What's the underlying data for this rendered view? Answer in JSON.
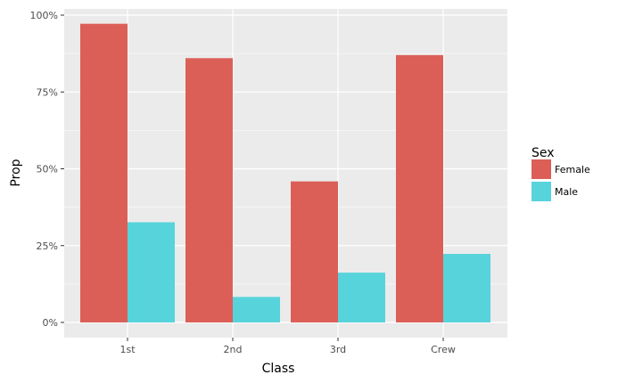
{
  "chart_data": {
    "type": "bar",
    "title": "",
    "xlabel": "Class",
    "ylabel": "Prop",
    "categories": [
      "1st",
      "2nd",
      "3rd",
      "Crew"
    ],
    "series": [
      {
        "name": "Female",
        "color": "#db5f57",
        "values": [
          0.972,
          0.86,
          0.459,
          0.87
        ]
      },
      {
        "name": "Male",
        "color": "#57d3db",
        "values": [
          0.326,
          0.083,
          0.162,
          0.223
        ]
      }
    ],
    "ylim": [
      0,
      1
    ],
    "yticks": [
      0,
      0.25,
      0.5,
      0.75,
      1.0
    ],
    "ytick_labels": [
      "0%",
      "25%",
      "50%",
      "75%",
      "100%"
    ],
    "legend": {
      "title": "Sex",
      "position": "right"
    },
    "grid": true,
    "panel_background": "#ebebeb"
  }
}
